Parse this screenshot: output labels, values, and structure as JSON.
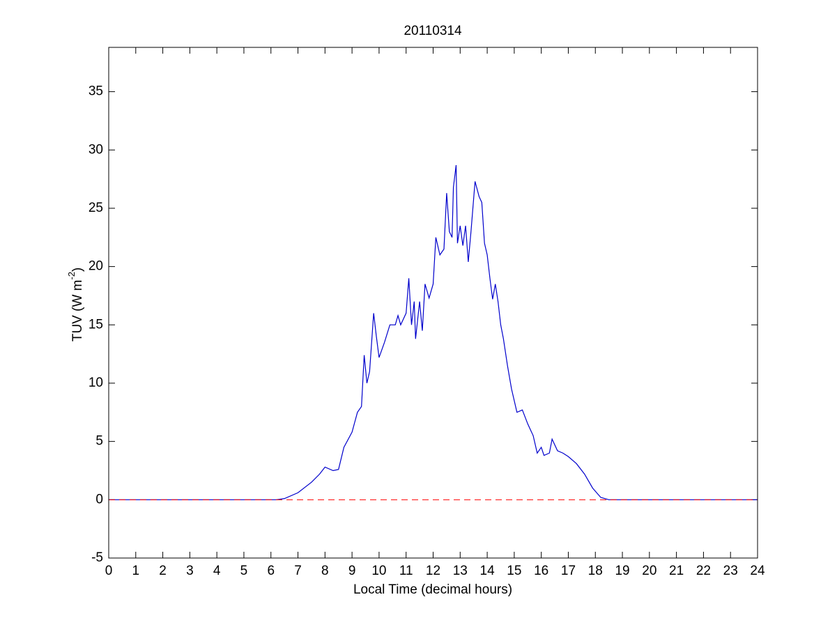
{
  "chart_data": {
    "type": "line",
    "title": "20110314",
    "xlabel": "Local Time (decimal hours)",
    "ylabel": {
      "text": "TUV (W m",
      "superscript": "-2",
      "suffix": ")"
    },
    "xlim": [
      0,
      24
    ],
    "ylim": [
      -5,
      38.8
    ],
    "xticks": [
      0,
      1,
      2,
      3,
      4,
      5,
      6,
      7,
      8,
      9,
      10,
      11,
      12,
      13,
      14,
      15,
      16,
      17,
      18,
      19,
      20,
      21,
      22,
      23,
      24
    ],
    "yticks": [
      -5,
      0,
      5,
      10,
      15,
      20,
      25,
      30,
      35
    ],
    "grid": false,
    "reference_line": {
      "value": 0,
      "color": "#ff0000",
      "style": "dashed"
    },
    "series": [
      {
        "color": "#0000cc",
        "x": [
          0,
          6.2,
          6.5,
          7,
          7.5,
          7.8,
          8,
          8.3,
          8.5,
          8.7,
          9,
          9.2,
          9.35,
          9.45,
          9.55,
          9.65,
          9.8,
          9.9,
          10,
          10.2,
          10.4,
          10.6,
          10.7,
          10.8,
          11,
          11.1,
          11.2,
          11.3,
          11.35,
          11.5,
          11.6,
          11.7,
          11.85,
          12,
          12.1,
          12.25,
          12.4,
          12.5,
          12.6,
          12.7,
          12.75,
          12.85,
          12.9,
          13,
          13.1,
          13.2,
          13.3,
          13.4,
          13.55,
          13.7,
          13.8,
          13.9,
          14,
          14.1,
          14.2,
          14.3,
          14.4,
          14.5,
          14.6,
          14.75,
          14.9,
          15.1,
          15.3,
          15.5,
          15.7,
          15.85,
          16,
          16.1,
          16.3,
          16.4,
          16.6,
          16.8,
          17,
          17.3,
          17.6,
          17.9,
          18.2,
          18.5,
          24
        ],
        "values": [
          0,
          0,
          0.1,
          0.6,
          1.5,
          2.2,
          2.8,
          2.5,
          2.6,
          4.5,
          5.8,
          7.5,
          8,
          12.4,
          10,
          11,
          16,
          14,
          12.2,
          13.5,
          15,
          15,
          15.8,
          15,
          16,
          19,
          15,
          17,
          13.8,
          17,
          14.5,
          18.5,
          17.3,
          18.5,
          22.5,
          21,
          21.5,
          26.3,
          23,
          22.5,
          26.8,
          28.7,
          22,
          23.5,
          21.8,
          23.5,
          20.4,
          23,
          27.3,
          26,
          25.5,
          22,
          21,
          19,
          17.2,
          18.5,
          17,
          15,
          13.8,
          11.5,
          9.5,
          7.5,
          7.7,
          6.5,
          5.5,
          4,
          4.5,
          3.8,
          4,
          5.2,
          4.2,
          4,
          3.7,
          3.1,
          2.2,
          1,
          0.2,
          0,
          0
        ]
      }
    ]
  }
}
